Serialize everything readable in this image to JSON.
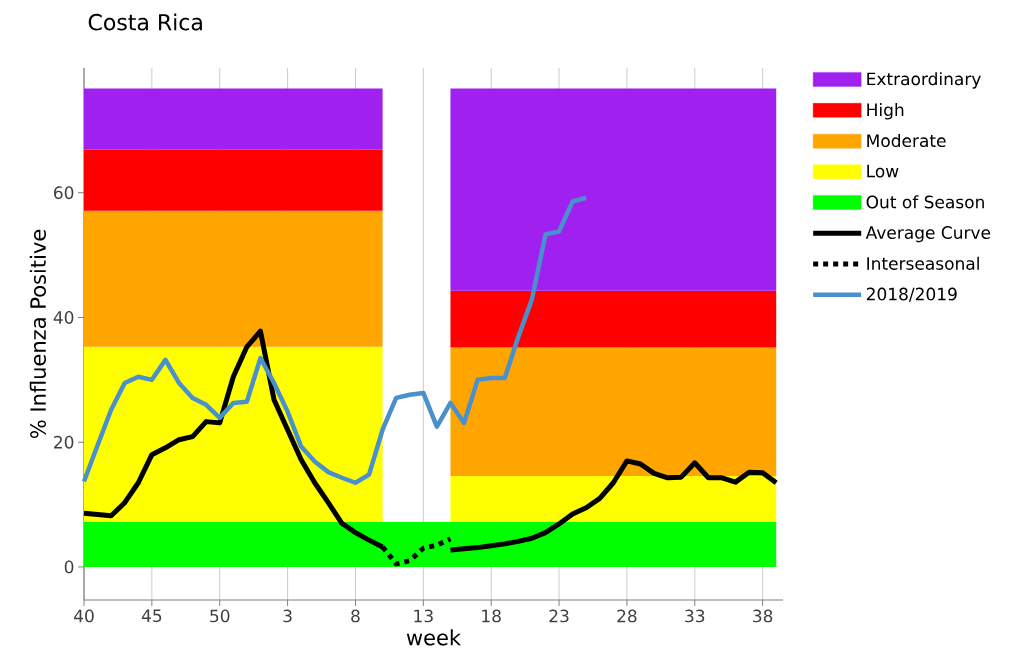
{
  "chart_data": {
    "type": "line",
    "title": "Costa Rica",
    "xlabel": "week",
    "ylabel": "% Influenza Positive",
    "categories": [
      "40",
      null,
      null,
      null,
      null,
      "45",
      null,
      null,
      null,
      null,
      "50",
      null,
      null,
      null,
      null,
      "3",
      null,
      null,
      null,
      null,
      "8",
      null,
      null,
      null,
      null,
      "13",
      null,
      null,
      null,
      null,
      "18",
      null,
      null,
      null,
      null,
      "23",
      null,
      null,
      null,
      null,
      "28",
      null,
      null,
      null,
      null,
      "33",
      null,
      null,
      null,
      null,
      "38",
      null
    ],
    "ylim": [
      -5.3,
      80
    ],
    "yticks": [
      0,
      20,
      40,
      60
    ],
    "grid": "x",
    "legend": "right",
    "stacked": true,
    "series": [
      {
        "name": "Out of Season",
        "type": "area",
        "color": "#00ff00",
        "values": [
          7.2,
          7.2,
          7.2,
          7.2,
          7.2,
          7.2,
          7.2,
          7.2,
          7.2,
          7.2,
          7.2,
          7.2,
          7.2,
          7.2,
          7.2,
          7.2,
          7.2,
          7.2,
          7.2,
          7.2,
          7.2,
          7.2,
          7.2,
          7.2,
          7.2,
          7.2,
          7.2,
          7.2,
          7.2,
          7.2,
          7.2,
          7.2,
          7.2,
          7.2,
          7.2,
          7.2,
          7.2,
          7.2,
          7.2,
          7.2,
          7.2,
          7.2,
          7.2,
          7.2,
          7.2,
          7.2,
          7.2,
          7.2,
          7.2,
          7.2,
          7.2,
          7.2
        ]
      },
      {
        "name": "Low",
        "type": "area",
        "color": "#ffff00",
        "values": [
          28.1,
          28.1,
          28.1,
          28.1,
          28.1,
          28.1,
          28.1,
          28.1,
          28.1,
          28.1,
          28.1,
          28.1,
          28.1,
          28.1,
          28.1,
          28.1,
          28.1,
          28.1,
          28.1,
          28.1,
          28.1,
          28.1,
          28.1,
          null,
          null,
          null,
          null,
          7.4,
          7.4,
          7.4,
          7.4,
          7.4,
          7.4,
          7.4,
          7.4,
          7.4,
          7.4,
          7.4,
          7.4,
          7.4,
          7.4,
          7.4,
          7.4,
          7.4,
          7.4,
          7.4,
          7.4,
          7.4,
          7.4,
          7.4,
          7.4,
          7.4
        ]
      },
      {
        "name": "Moderate",
        "type": "area",
        "color": "#ffa500",
        "values": [
          21.8,
          21.8,
          21.8,
          21.8,
          21.8,
          21.8,
          21.8,
          21.8,
          21.8,
          21.8,
          21.8,
          21.8,
          21.8,
          21.8,
          21.8,
          21.8,
          21.8,
          21.8,
          21.8,
          21.8,
          21.8,
          21.8,
          21.8,
          null,
          null,
          null,
          null,
          20.6,
          20.6,
          20.6,
          20.6,
          20.6,
          20.6,
          20.6,
          20.6,
          20.6,
          20.6,
          20.6,
          20.6,
          20.6,
          20.6,
          20.6,
          20.6,
          20.6,
          20.6,
          20.6,
          20.6,
          20.6,
          20.6,
          20.6,
          20.6,
          20.6
        ]
      },
      {
        "name": "High",
        "type": "area",
        "color": "#ff0000",
        "values": [
          9.8,
          9.8,
          9.8,
          9.8,
          9.8,
          9.8,
          9.8,
          9.8,
          9.8,
          9.8,
          9.8,
          9.8,
          9.8,
          9.8,
          9.8,
          9.8,
          9.8,
          9.8,
          9.8,
          9.8,
          9.8,
          9.8,
          9.8,
          null,
          null,
          null,
          null,
          9.1,
          9.1,
          9.1,
          9.1,
          9.1,
          9.1,
          9.1,
          9.1,
          9.1,
          9.1,
          9.1,
          9.1,
          9.1,
          9.1,
          9.1,
          9.1,
          9.1,
          9.1,
          9.1,
          9.1,
          9.1,
          9.1,
          9.1,
          9.1,
          9.1
        ]
      },
      {
        "name": "Extraordinary",
        "type": "area",
        "color": "#a020f0",
        "values": [
          9.8,
          9.8,
          9.8,
          9.8,
          9.8,
          9.8,
          9.8,
          9.8,
          9.8,
          9.8,
          9.8,
          9.8,
          9.8,
          9.8,
          9.8,
          9.8,
          9.8,
          9.8,
          9.8,
          9.8,
          9.8,
          9.8,
          9.8,
          null,
          null,
          null,
          null,
          32.4,
          32.4,
          32.4,
          32.4,
          32.4,
          32.4,
          32.4,
          32.4,
          32.4,
          32.4,
          32.4,
          32.4,
          32.4,
          32.4,
          32.4,
          32.4,
          32.4,
          32.4,
          32.4,
          32.4,
          32.4,
          32.4,
          32.4,
          32.4,
          32.4
        ]
      },
      {
        "name": "Average Curve",
        "color": "#000000",
        "line_style": "solid",
        "values": [
          8.6,
          8.4,
          8.2,
          10.3,
          13.5,
          18.0,
          19.1,
          20.4,
          20.9,
          23.3,
          23.1,
          30.5,
          35.3,
          37.8,
          26.8,
          22.0,
          17.2,
          13.5,
          10.3,
          7.0,
          5.5,
          4.3,
          3.2,
          null,
          null,
          null,
          null,
          2.7,
          2.9,
          3.1,
          3.4,
          3.7,
          4.1,
          4.6,
          5.5,
          6.9,
          8.5,
          9.5,
          11.0,
          13.5,
          17.0,
          16.5,
          15.0,
          14.3,
          14.4,
          16.7,
          14.3,
          14.3,
          13.6,
          15.2,
          15.1,
          13.5
        ]
      },
      {
        "name": "Interseasonal",
        "color": "#000000",
        "line_style": "dotted",
        "values": [
          null,
          null,
          null,
          null,
          null,
          null,
          null,
          null,
          null,
          null,
          null,
          null,
          null,
          null,
          null,
          null,
          null,
          null,
          null,
          null,
          null,
          null,
          3.2,
          0.5,
          1.0,
          3.0,
          3.5,
          4.5,
          null,
          null,
          null,
          null,
          null,
          null,
          null,
          null,
          null,
          null,
          null,
          null,
          null,
          null,
          null,
          null,
          null,
          null,
          null,
          null,
          null,
          null,
          null,
          null
        ]
      },
      {
        "name": "2018/2019",
        "color": "#4a90cc",
        "line_style": "solid",
        "values": [
          13.7,
          19.5,
          25.2,
          29.5,
          30.5,
          30.0,
          33.2,
          29.5,
          27.1,
          26.0,
          23.9,
          26.3,
          26.5,
          33.5,
          29.5,
          24.9,
          19.3,
          16.9,
          15.2,
          14.3,
          13.5,
          14.8,
          22.0,
          27.1,
          27.6,
          27.9,
          22.5,
          26.3,
          23.1,
          30.0,
          30.3,
          30.3,
          36.9,
          42.9,
          53.3,
          53.8,
          58.6,
          59.2,
          null,
          null,
          null,
          null,
          null,
          null,
          null,
          null,
          null,
          null,
          null,
          null,
          null,
          null
        ]
      }
    ]
  }
}
